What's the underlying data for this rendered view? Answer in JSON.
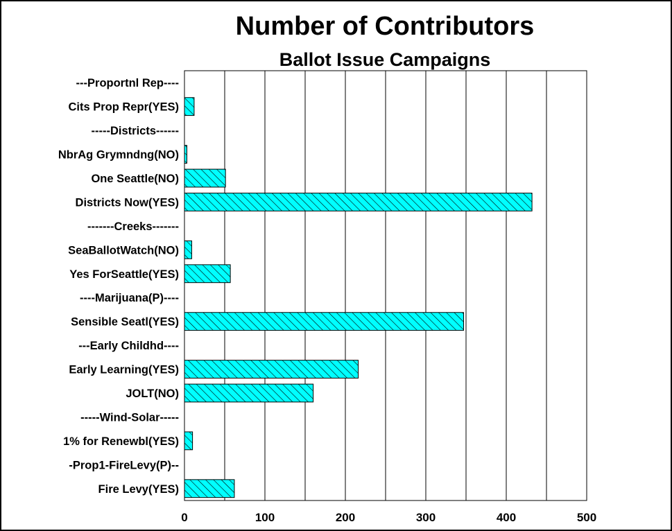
{
  "chart_data": {
    "type": "bar",
    "orientation": "horizontal",
    "title": "Number of Contributors",
    "subtitle": "Ballot Issue Campaigns",
    "categories": [
      "---Proportnl Rep----",
      "Cits Prop Repr(YES)",
      "-----Districts------",
      "NbrAg Grymndng(NO)",
      "One Seattle(NO)",
      "Districts Now(YES)",
      "-------Creeks-------",
      "SeaBallotWatch(NO)",
      "Yes ForSeattle(YES)",
      "----Marijuana(P)----",
      "Sensible Seatl(YES)",
      "---Early Childhd----",
      "Early Learning(YES)",
      "JOLT(NO)",
      "-----Wind-Solar-----",
      "1% for Renewbl(YES)",
      "-Prop1-FireLevy(P)--",
      "Fire Levy(YES)"
    ],
    "values": [
      0,
      12,
      0,
      3,
      51,
      432,
      0,
      9,
      57,
      0,
      347,
      0,
      216,
      160,
      0,
      10,
      0,
      62
    ],
    "xlim": [
      0,
      500
    ],
    "xticks": [
      "0",
      "100",
      "200",
      "300",
      "400",
      "500"
    ],
    "grid": "vertical",
    "bar_color": "#00FFFF",
    "bar_pattern": "diagonal-hatch",
    "legend": "none"
  }
}
